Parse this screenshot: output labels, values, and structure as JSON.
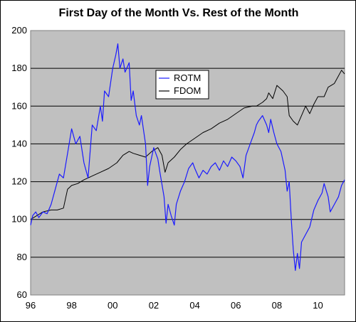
{
  "chart_data": {
    "type": "line",
    "title": "First Day of the Month Vs. Rest of the Month",
    "xlabel": "",
    "ylabel": "",
    "x_ticks": [
      "96",
      "98",
      "00",
      "02",
      "04",
      "06",
      "08",
      "10"
    ],
    "y_ticks": [
      "60",
      "80",
      "100",
      "120",
      "140",
      "160",
      "180",
      "200"
    ],
    "ylim": [
      60,
      200
    ],
    "xlim": [
      1996.0,
      2011.3
    ],
    "grid": "horizontal",
    "legend_position": "upper-center",
    "plot_background": "#c0c0c0",
    "series": [
      {
        "name": "ROTM",
        "color": "#1a1aff",
        "points": [
          [
            1996.0,
            97
          ],
          [
            1996.1,
            102
          ],
          [
            1996.25,
            104
          ],
          [
            1996.4,
            101
          ],
          [
            1996.6,
            104
          ],
          [
            1996.8,
            103
          ],
          [
            1997.0,
            108
          ],
          [
            1997.2,
            116
          ],
          [
            1997.4,
            124
          ],
          [
            1997.6,
            122
          ],
          [
            1997.8,
            135
          ],
          [
            1998.0,
            148
          ],
          [
            1998.2,
            140
          ],
          [
            1998.4,
            144
          ],
          [
            1998.6,
            130
          ],
          [
            1998.8,
            122
          ],
          [
            1999.0,
            150
          ],
          [
            1999.2,
            147
          ],
          [
            1999.4,
            160
          ],
          [
            1999.5,
            152
          ],
          [
            1999.6,
            168
          ],
          [
            1999.8,
            165
          ],
          [
            2000.0,
            180
          ],
          [
            2000.15,
            187
          ],
          [
            2000.25,
            193
          ],
          [
            2000.35,
            180
          ],
          [
            2000.5,
            185
          ],
          [
            2000.6,
            178
          ],
          [
            2000.8,
            183
          ],
          [
            2000.9,
            163
          ],
          [
            2001.0,
            168
          ],
          [
            2001.15,
            155
          ],
          [
            2001.3,
            150
          ],
          [
            2001.4,
            155
          ],
          [
            2001.6,
            140
          ],
          [
            2001.7,
            118
          ],
          [
            2001.8,
            128
          ],
          [
            2002.0,
            138
          ],
          [
            2002.2,
            132
          ],
          [
            2002.3,
            125
          ],
          [
            2002.5,
            112
          ],
          [
            2002.6,
            98
          ],
          [
            2002.7,
            108
          ],
          [
            2002.85,
            102
          ],
          [
            2003.0,
            97
          ],
          [
            2003.1,
            108
          ],
          [
            2003.3,
            115
          ],
          [
            2003.5,
            120
          ],
          [
            2003.7,
            127
          ],
          [
            2003.9,
            130
          ],
          [
            2004.0,
            127
          ],
          [
            2004.2,
            122
          ],
          [
            2004.4,
            126
          ],
          [
            2004.6,
            124
          ],
          [
            2004.8,
            128
          ],
          [
            2005.0,
            130
          ],
          [
            2005.2,
            126
          ],
          [
            2005.4,
            131
          ],
          [
            2005.6,
            128
          ],
          [
            2005.8,
            133
          ],
          [
            2006.0,
            131
          ],
          [
            2006.2,
            128
          ],
          [
            2006.35,
            122
          ],
          [
            2006.5,
            134
          ],
          [
            2006.7,
            140
          ],
          [
            2006.9,
            146
          ],
          [
            2007.0,
            150
          ],
          [
            2007.1,
            152
          ],
          [
            2007.3,
            155
          ],
          [
            2007.5,
            150
          ],
          [
            2007.6,
            146
          ],
          [
            2007.7,
            153
          ],
          [
            2007.85,
            146
          ],
          [
            2008.0,
            140
          ],
          [
            2008.2,
            136
          ],
          [
            2008.4,
            126
          ],
          [
            2008.5,
            115
          ],
          [
            2008.6,
            120
          ],
          [
            2008.7,
            100
          ],
          [
            2008.8,
            84
          ],
          [
            2008.9,
            73
          ],
          [
            2009.0,
            82
          ],
          [
            2009.1,
            74
          ],
          [
            2009.2,
            88
          ],
          [
            2009.4,
            92
          ],
          [
            2009.6,
            96
          ],
          [
            2009.8,
            105
          ],
          [
            2010.0,
            110
          ],
          [
            2010.2,
            114
          ],
          [
            2010.3,
            119
          ],
          [
            2010.5,
            112
          ],
          [
            2010.6,
            104
          ],
          [
            2010.8,
            108
          ],
          [
            2011.0,
            112
          ],
          [
            2011.15,
            118
          ],
          [
            2011.3,
            121
          ]
        ]
      },
      {
        "name": "FDOM",
        "color": "#000000",
        "points": [
          [
            1996.0,
            100
          ],
          [
            1996.3,
            102
          ],
          [
            1996.6,
            104
          ],
          [
            1997.0,
            105
          ],
          [
            1997.3,
            105
          ],
          [
            1997.6,
            106
          ],
          [
            1997.8,
            116
          ],
          [
            1998.0,
            118
          ],
          [
            1998.3,
            119
          ],
          [
            1998.6,
            121
          ],
          [
            1999.0,
            123
          ],
          [
            1999.4,
            125
          ],
          [
            1999.8,
            127
          ],
          [
            2000.2,
            130
          ],
          [
            2000.5,
            134
          ],
          [
            2000.8,
            136
          ],
          [
            2001.0,
            135
          ],
          [
            2001.3,
            134
          ],
          [
            2001.6,
            133
          ],
          [
            2001.9,
            136
          ],
          [
            2002.2,
            138
          ],
          [
            2002.4,
            134
          ],
          [
            2002.55,
            125
          ],
          [
            2002.7,
            130
          ],
          [
            2003.0,
            133
          ],
          [
            2003.3,
            137
          ],
          [
            2003.6,
            140
          ],
          [
            2004.0,
            143
          ],
          [
            2004.4,
            146
          ],
          [
            2004.8,
            148
          ],
          [
            2005.2,
            151
          ],
          [
            2005.6,
            153
          ],
          [
            2006.0,
            156
          ],
          [
            2006.4,
            159
          ],
          [
            2006.8,
            160
          ],
          [
            2007.0,
            160
          ],
          [
            2007.3,
            162
          ],
          [
            2007.5,
            164
          ],
          [
            2007.6,
            167
          ],
          [
            2007.8,
            164
          ],
          [
            2008.0,
            171
          ],
          [
            2008.3,
            168
          ],
          [
            2008.5,
            165
          ],
          [
            2008.6,
            155
          ],
          [
            2008.8,
            152
          ],
          [
            2009.0,
            150
          ],
          [
            2009.2,
            155
          ],
          [
            2009.4,
            160
          ],
          [
            2009.6,
            156
          ],
          [
            2009.8,
            161
          ],
          [
            2010.0,
            165
          ],
          [
            2010.3,
            165
          ],
          [
            2010.5,
            170
          ],
          [
            2010.8,
            172
          ],
          [
            2011.0,
            176
          ],
          [
            2011.15,
            179
          ],
          [
            2011.3,
            177
          ]
        ]
      }
    ]
  }
}
